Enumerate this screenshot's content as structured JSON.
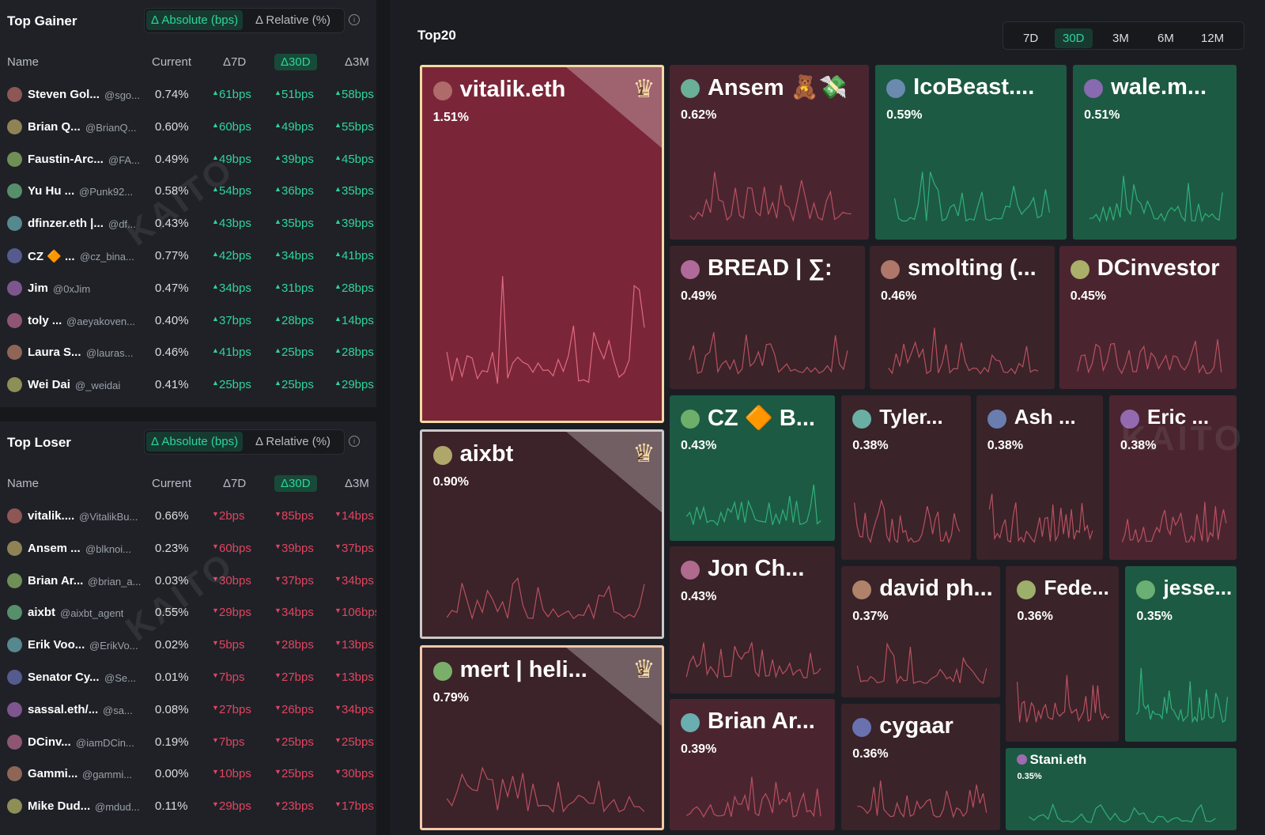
{
  "top_gainer": {
    "title": "Top Gainer",
    "tabs": [
      "Δ Absolute (bps)",
      "Δ Relative (%)"
    ],
    "columns": [
      "Name",
      "Current",
      "Δ7D",
      "Δ30D",
      "Δ3M"
    ],
    "rows": [
      [
        "Steven Gol...",
        "@sgo...",
        "0.74%",
        "61bps",
        "51bps",
        "58bps"
      ],
      [
        "Brian Q...",
        "@BrianQ...",
        "0.60%",
        "60bps",
        "49bps",
        "55bps"
      ],
      [
        "Faustin-Arc...",
        "@FA...",
        "0.49%",
        "49bps",
        "39bps",
        "45bps"
      ],
      [
        "Yu Hu ...",
        "@Punk92...",
        "0.58%",
        "54bps",
        "36bps",
        "35bps"
      ],
      [
        "dfinzer.eth |...",
        "@df...",
        "0.43%",
        "43bps",
        "35bps",
        "39bps"
      ],
      [
        "CZ 🔶 ...",
        "@cz_bina...",
        "0.77%",
        "42bps",
        "34bps",
        "41bps"
      ],
      [
        "Jim",
        "@0xJim",
        "0.47%",
        "34bps",
        "31bps",
        "28bps"
      ],
      [
        "toly ...",
        "@aeyakoven...",
        "0.40%",
        "37bps",
        "28bps",
        "14bps"
      ],
      [
        "Laura S...",
        "@lauras...",
        "0.46%",
        "41bps",
        "25bps",
        "28bps"
      ],
      [
        "Wei Dai",
        "@_weidai",
        "0.41%",
        "25bps",
        "25bps",
        "29bps"
      ]
    ]
  },
  "top_loser": {
    "title": "Top Loser",
    "tabs": [
      "Δ Absolute (bps)",
      "Δ Relative (%)"
    ],
    "columns": [
      "Name",
      "Current",
      "Δ7D",
      "Δ30D",
      "Δ3M"
    ],
    "rows": [
      [
        "vitalik....",
        "@VitalikBu...",
        "0.66%",
        "2bps",
        "85bps",
        "14bps"
      ],
      [
        "Ansem ...",
        "@blknoi...",
        "0.23%",
        "60bps",
        "39bps",
        "37bps"
      ],
      [
        "Brian Ar...",
        "@brian_a...",
        "0.03%",
        "30bps",
        "37bps",
        "34bps"
      ],
      [
        "aixbt",
        "@aixbt_agent",
        "0.55%",
        "29bps",
        "34bps",
        "106bps"
      ],
      [
        "Erik Voo...",
        "@ErikVo...",
        "0.02%",
        "5bps",
        "28bps",
        "13bps"
      ],
      [
        "Senator Cy...",
        "@Se...",
        "0.01%",
        "7bps",
        "27bps",
        "13bps"
      ],
      [
        "sassal.eth/...",
        "@sa...",
        "0.08%",
        "27bps",
        "26bps",
        "34bps"
      ],
      [
        "DCinv...",
        "@iamDCin...",
        "0.19%",
        "7bps",
        "25bps",
        "25bps"
      ],
      [
        "Gammi...",
        "@gammi...",
        "0.00%",
        "10bps",
        "25bps",
        "30bps"
      ],
      [
        "Mike Dud...",
        "@mdud...",
        "0.11%",
        "29bps",
        "23bps",
        "17bps"
      ]
    ]
  },
  "top20": {
    "title": "Top20",
    "periods": [
      "7D",
      "30D",
      "3M",
      "6M",
      "12M"
    ],
    "watermark": "KAITO",
    "tiles": [
      {
        "name": "vitalik.eth",
        "value": "1.51%",
        "rank": "1",
        "color": "#7a2638"
      },
      {
        "name": "aixbt",
        "value": "0.90%",
        "rank": "2",
        "color": "#3c2229"
      },
      {
        "name": "mert | heli...",
        "value": "0.79%",
        "rank": "3",
        "color": "#3c2229"
      },
      {
        "name": "Ansem 🧸💸",
        "value": "0.62%",
        "color": "#4a2530"
      },
      {
        "name": "IcoBeast....",
        "value": "0.59%",
        "color": "#1d5a43"
      },
      {
        "name": "wale.m...",
        "value": "0.51%",
        "color": "#1d5a43"
      },
      {
        "name": "BREAD | ∑:",
        "value": "0.49%",
        "color": "#3a2329"
      },
      {
        "name": "smolting (...",
        "value": "0.46%",
        "color": "#3a2329"
      },
      {
        "name": "DCinvestor",
        "value": "0.45%",
        "color": "#4a2530"
      },
      {
        "name": "CZ 🔶 B...",
        "value": "0.43%",
        "color": "#1d5a43"
      },
      {
        "name": "Tyler...",
        "value": "0.38%",
        "color": "#3a2329"
      },
      {
        "name": "Ash ...",
        "value": "0.38%",
        "color": "#3a2329"
      },
      {
        "name": "Eric ...",
        "value": "0.38%",
        "color": "#4a2530"
      },
      {
        "name": "Jon Ch...",
        "value": "0.43%",
        "color": "#3a2329"
      },
      {
        "name": "david ph...",
        "value": "0.37%",
        "color": "#3a2329"
      },
      {
        "name": "Fede...",
        "value": "0.36%",
        "color": "#3a2329"
      },
      {
        "name": "jesse...",
        "value": "0.35%",
        "color": "#1d5a43"
      },
      {
        "name": "Brian Ar...",
        "value": "0.39%",
        "color": "#4a2530"
      },
      {
        "name": "cygaar",
        "value": "0.36%",
        "color": "#3a2329"
      },
      {
        "name": "Stani.eth",
        "value": "0.35%",
        "color": "#1d5a43"
      }
    ]
  }
}
